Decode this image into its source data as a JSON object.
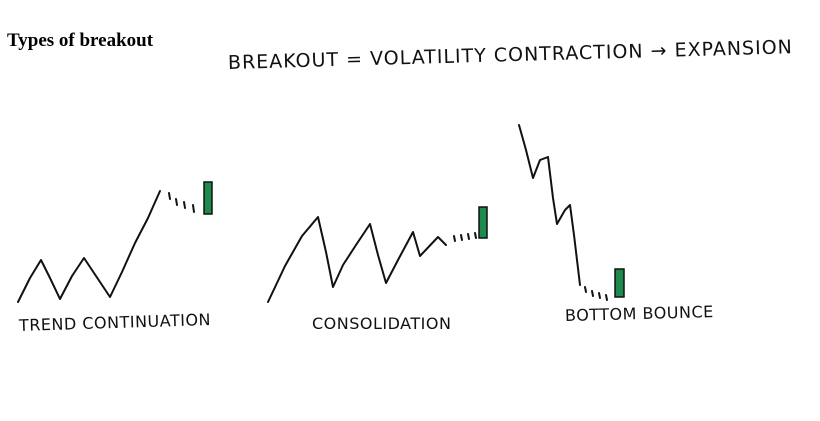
{
  "title": "Types of breakout",
  "headline": "Breakout = Volatility contraction → Expansion",
  "candle_color": "#1e8a4e",
  "patterns": [
    {
      "caption": "Trend Continuation"
    },
    {
      "caption": "Consolidation"
    },
    {
      "caption": "Bottom Bounce"
    }
  ]
}
